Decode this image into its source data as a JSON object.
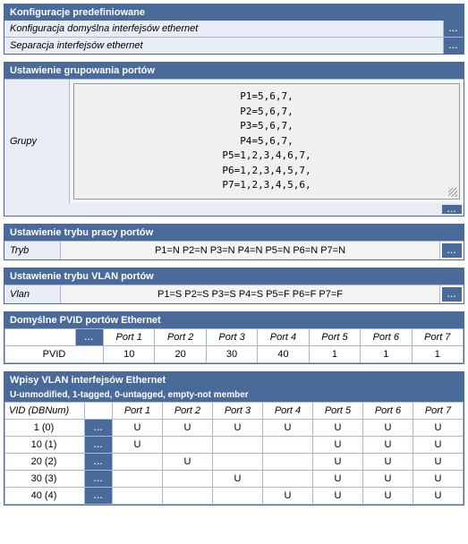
{
  "cfg": {
    "hdr": "Konfiguracje predefiniowane",
    "items": [
      "Konfiguracja domyślna interfejsów ethernet",
      "Separacja interfejsów ethernet"
    ]
  },
  "grp": {
    "hdr": "Ustawienie grupowania portów",
    "label": "Grupy",
    "text": "P1=5,6,7,\nP2=5,6,7,\nP3=5,6,7,\nP4=5,6,7,\nP5=1,2,3,4,6,7,\nP6=1,2,3,4,5,7,\nP7=1,2,3,4,5,6,"
  },
  "mode": {
    "hdr": "Ustawienie trybu pracy portów",
    "label": "Tryb",
    "text": "P1=N P2=N P3=N P4=N P5=N P6=N P7=N"
  },
  "vlan": {
    "hdr": "Ustawienie trybu VLAN portów",
    "label": "Vlan",
    "text": "P1=S P2=S P3=S P4=S P5=F P6=F P7=F"
  },
  "pvid": {
    "hdr": "Domyślne PVID portów Ethernet",
    "rowlabel": "PVID",
    "ports": [
      "Port 1",
      "Port 2",
      "Port 3",
      "Port 4",
      "Port 5",
      "Port 6",
      "Port 7"
    ],
    "values": [
      "10",
      "20",
      "30",
      "40",
      "1",
      "1",
      "1"
    ]
  },
  "entries": {
    "hdr": "Wpisy VLAN interfejsów Ethernet",
    "sub": "U-unmodified, 1-tagged, 0-untagged, empty-not member",
    "vidhdr": "VID (DBNum)",
    "ports": [
      "Port 1",
      "Port 2",
      "Port 3",
      "Port 4",
      "Port 5",
      "Port 6",
      "Port 7"
    ],
    "rows": [
      {
        "vid": "1 (0)",
        "v": [
          "U",
          "U",
          "U",
          "U",
          "U",
          "U",
          "U"
        ]
      },
      {
        "vid": "10 (1)",
        "v": [
          "U",
          "",
          "",
          "",
          "U",
          "U",
          "U"
        ]
      },
      {
        "vid": "20 (2)",
        "v": [
          "",
          "U",
          "",
          "",
          "U",
          "U",
          "U"
        ]
      },
      {
        "vid": "30 (3)",
        "v": [
          "",
          "",
          "U",
          "",
          "U",
          "U",
          "U"
        ]
      },
      {
        "vid": "40 (4)",
        "v": [
          "",
          "",
          "",
          "U",
          "U",
          "U",
          "U"
        ]
      }
    ]
  },
  "dots": "..."
}
